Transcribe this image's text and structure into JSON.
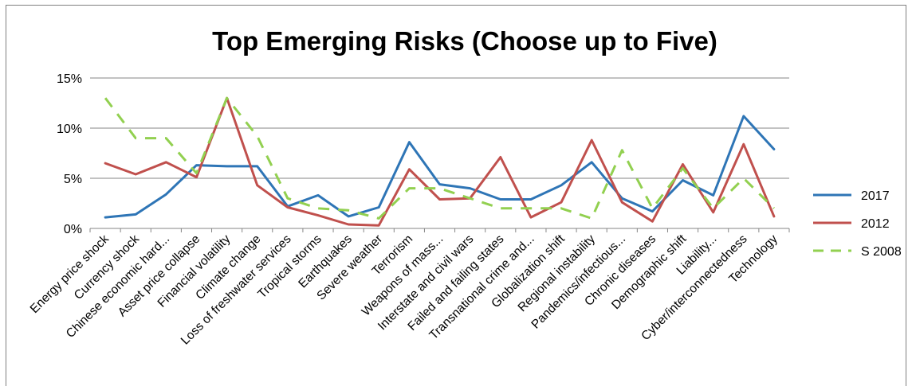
{
  "chart_data": {
    "type": "line",
    "title": "Top Emerging Risks (Choose up to Five)",
    "xlabel": "",
    "ylabel": "",
    "ylim": [
      0,
      15
    ],
    "yticks": [
      0,
      5,
      10,
      15
    ],
    "ytick_labels": [
      "0%",
      "5%",
      "10%",
      "15%"
    ],
    "grid": "horizontal",
    "legend_position": "right",
    "categories": [
      "Energy price shock",
      "Currency shock",
      "Chinese economic hard...",
      "Asset price collapse",
      "Financial volatility",
      "Climate change",
      "Loss of freshwater services",
      "Tropical storms",
      "Earthquakes",
      "Severe weather",
      "Terrorism",
      "Weapons of mass...",
      "Interstate and civil wars",
      "Failed and failing states",
      "Transnational crime and...",
      "Globalization shift",
      "Regional instability",
      "Pandemics/infectious...",
      "Chronic diseases",
      "Demographic shift",
      "Liability...",
      "Cyber/interconnectedness",
      "Technology"
    ],
    "series": [
      {
        "name": "2017",
        "color": "#2e75b6",
        "style": "solid",
        "values": [
          1.1,
          1.4,
          3.4,
          6.3,
          6.2,
          6.2,
          2.2,
          3.3,
          1.2,
          2.1,
          8.6,
          4.4,
          4.0,
          2.9,
          2.9,
          4.3,
          6.6,
          3.0,
          1.7,
          4.8,
          3.3,
          11.2,
          7.9
        ]
      },
      {
        "name": "2012",
        "color": "#c0504d",
        "style": "solid",
        "values": [
          6.5,
          5.4,
          6.6,
          5.1,
          13.0,
          4.3,
          2.1,
          1.3,
          0.4,
          0.3,
          5.9,
          2.9,
          3.0,
          7.1,
          1.1,
          2.6,
          8.8,
          2.6,
          0.7,
          6.4,
          1.6,
          8.4,
          1.2
        ]
      },
      {
        "name": "S 2008",
        "color": "#92d050",
        "style": "dashed",
        "values": [
          13.0,
          9.0,
          9.0,
          5.5,
          13.0,
          9.2,
          3.0,
          2.0,
          1.8,
          1.0,
          4.0,
          4.0,
          3.0,
          2.0,
          2.0,
          2.0,
          1.0,
          7.8,
          2.0,
          6.0,
          2.0,
          5.0,
          2.0
        ]
      }
    ]
  }
}
